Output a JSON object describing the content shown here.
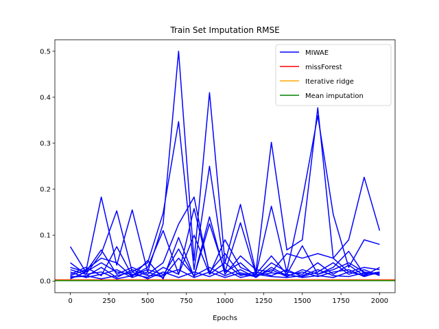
{
  "chart_data": {
    "type": "line",
    "title": "Train Set Imputation RMSE",
    "xlabel": "Epochs",
    "ylabel": "",
    "xlim": [
      -100,
      2100
    ],
    "ylim": [
      -0.025,
      0.525
    ],
    "xticks": [
      0,
      250,
      500,
      750,
      1000,
      1250,
      1500,
      1750,
      2000
    ],
    "yticks": [
      0.0,
      0.1,
      0.2,
      0.3,
      0.4,
      0.5
    ],
    "xtick_labels": [
      "0",
      "250",
      "500",
      "750",
      "1000",
      "1250",
      "1500",
      "1750",
      "2000"
    ],
    "ytick_labels": [
      "0.0",
      "0.1",
      "0.2",
      "0.3",
      "0.4",
      "0.5"
    ],
    "legend_position": "top-right",
    "grid": false,
    "x": [
      0,
      100,
      200,
      300,
      400,
      500,
      600,
      700,
      800,
      900,
      1000,
      1100,
      1200,
      1300,
      1400,
      1500,
      1600,
      1700,
      1800,
      1900,
      2000
    ],
    "miwae_runs": [
      [
        0.075,
        0.02,
        0.183,
        0.035,
        0.155,
        0.02,
        0.125,
        0.5,
        0.045,
        0.41,
        0.04,
        0.167,
        0.02,
        0.302,
        0.068,
        0.09,
        0.377,
        0.05,
        0.09,
        0.226,
        0.11
      ],
      [
        0.04,
        0.015,
        0.06,
        0.153,
        0.02,
        0.04,
        0.148,
        0.347,
        0.025,
        0.25,
        0.02,
        0.127,
        0.015,
        0.163,
        0.02,
        0.177,
        0.36,
        0.145,
        0.03,
        0.09,
        0.08
      ],
      [
        0.03,
        0.02,
        0.068,
        0.015,
        0.03,
        0.015,
        0.04,
        0.124,
        0.183,
        0.015,
        0.09,
        0.03,
        0.015,
        0.055,
        0.015,
        0.077,
        0.015,
        0.03,
        0.065,
        0.015,
        0.02
      ],
      [
        0.012,
        0.025,
        0.05,
        0.04,
        0.01,
        0.045,
        0.005,
        0.095,
        0.01,
        0.14,
        0.015,
        0.055,
        0.025,
        0.02,
        0.06,
        0.05,
        0.06,
        0.05,
        0.02,
        0.03,
        0.025
      ],
      [
        0.015,
        0.03,
        0.012,
        0.075,
        0.012,
        0.03,
        0.11,
        0.015,
        0.158,
        0.02,
        0.06,
        0.015,
        0.01,
        0.025,
        0.01,
        0.025,
        0.015,
        0.025,
        0.04,
        0.02,
        0.015
      ],
      [
        0.01,
        0.01,
        0.03,
        0.008,
        0.025,
        0.012,
        0.012,
        0.07,
        0.01,
        0.125,
        0.02,
        0.04,
        0.01,
        0.04,
        0.02,
        0.015,
        0.04,
        0.015,
        0.035,
        0.012,
        0.03
      ],
      [
        0.005,
        0.02,
        0.04,
        0.02,
        0.015,
        0.008,
        0.03,
        0.015,
        0.1,
        0.015,
        0.04,
        0.012,
        0.02,
        0.012,
        0.025,
        0.01,
        0.02,
        0.04,
        0.015,
        0.025,
        0.012
      ],
      [
        0.02,
        0.008,
        0.015,
        0.025,
        0.008,
        0.02,
        0.008,
        0.05,
        0.012,
        0.03,
        0.012,
        0.025,
        0.008,
        0.03,
        0.012,
        0.02,
        0.01,
        0.02,
        0.025,
        0.01,
        0.02
      ],
      [
        0.008,
        0.012,
        0.005,
        0.012,
        0.02,
        0.005,
        0.02,
        0.008,
        0.02,
        0.01,
        0.025,
        0.008,
        0.015,
        0.01,
        0.008,
        0.012,
        0.025,
        0.012,
        0.01,
        0.018,
        0.015
      ],
      [
        0.025,
        0.015,
        0.02,
        0.005,
        0.012,
        0.025,
        0.015,
        0.025,
        0.008,
        0.02,
        0.008,
        0.018,
        0.012,
        0.018,
        0.015,
        0.008,
        0.012,
        0.008,
        0.02,
        0.012,
        0.018
      ]
    ],
    "series": [
      {
        "name": "MIWAE",
        "color": "#0000ff"
      },
      {
        "name": "missForest",
        "color": "#ff0000",
        "value": 0.003
      },
      {
        "name": "Iterative ridge",
        "color": "#ffa500",
        "value": 0.002
      },
      {
        "name": "Mean imputation",
        "color": "#008000",
        "value": 0.001
      }
    ]
  }
}
